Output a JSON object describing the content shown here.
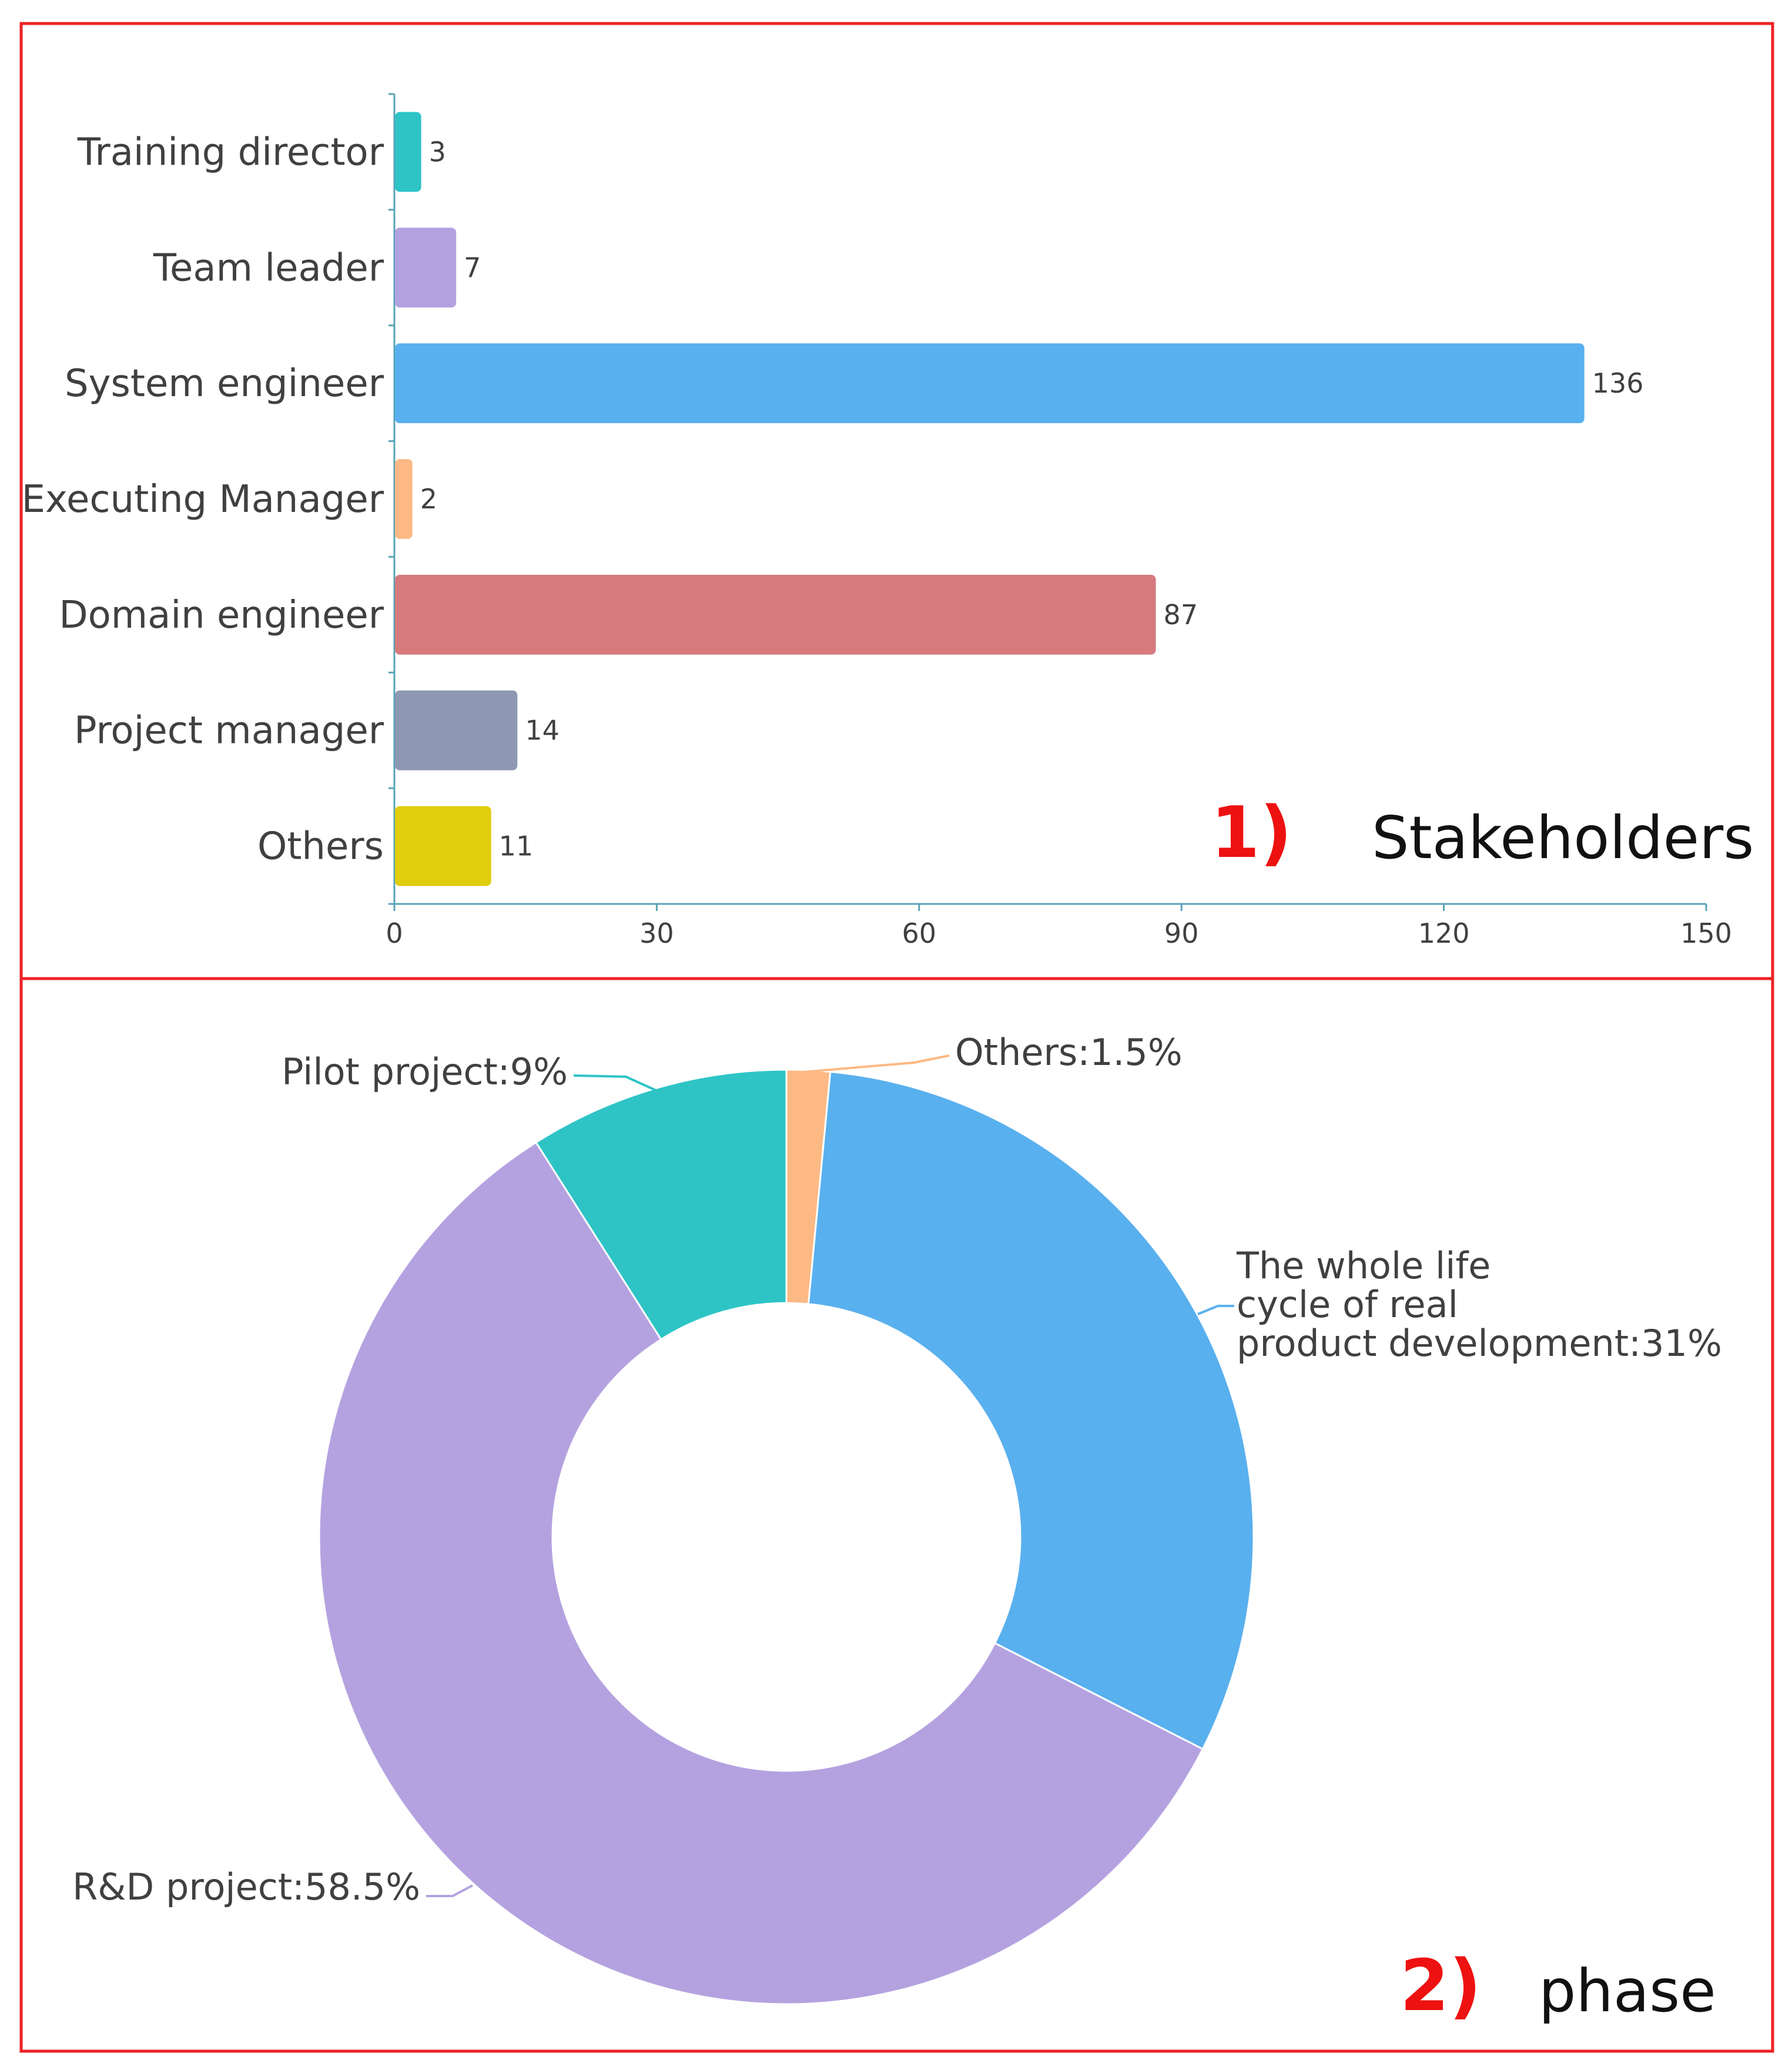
{
  "chart_data": [
    {
      "type": "bar",
      "orientation": "horizontal",
      "panel_label": "1)",
      "title": "Stakeholders",
      "categories": [
        "Training director",
        "Team leader",
        "System engineer",
        "Executing Manager",
        "Domain engineer",
        "Project manager",
        "Others"
      ],
      "values": [
        3,
        7,
        136,
        2,
        87,
        14,
        11
      ],
      "colors": [
        "#2ec4c6",
        "#b4a2e0",
        "#59b0ee",
        "#fcb984",
        "#d67a7e",
        "#8e98b3",
        "#e0cd0c"
      ],
      "xlim": [
        0,
        150
      ],
      "xticks": [
        0,
        30,
        60,
        90,
        120,
        150
      ],
      "legend": "none",
      "grid": false
    },
    {
      "type": "pie",
      "style": "donut",
      "panel_label": "2)",
      "title": "phase",
      "slices": [
        {
          "name": "Others",
          "value": 1.5,
          "label": "Others:1.5%",
          "color": "#fcb984"
        },
        {
          "name": "The whole life cycle of real product development",
          "value": 31,
          "label_lines": [
            "The whole life",
            "cycle of real",
            "product development:31%"
          ],
          "color": "#59b0ee"
        },
        {
          "name": "R&D project",
          "value": 58.5,
          "label": "R&D project:58.5%",
          "color": "#b4a2e0"
        },
        {
          "name": "Pilot project",
          "value": 9,
          "label": "Pilot project:9%",
          "color": "#2ec4c6"
        }
      ]
    }
  ],
  "colors": {
    "panel_border": "#ee2226",
    "panel_label": "#ee1111",
    "axis": "#5aa3b6",
    "text": "#404040",
    "title": "#111111"
  }
}
